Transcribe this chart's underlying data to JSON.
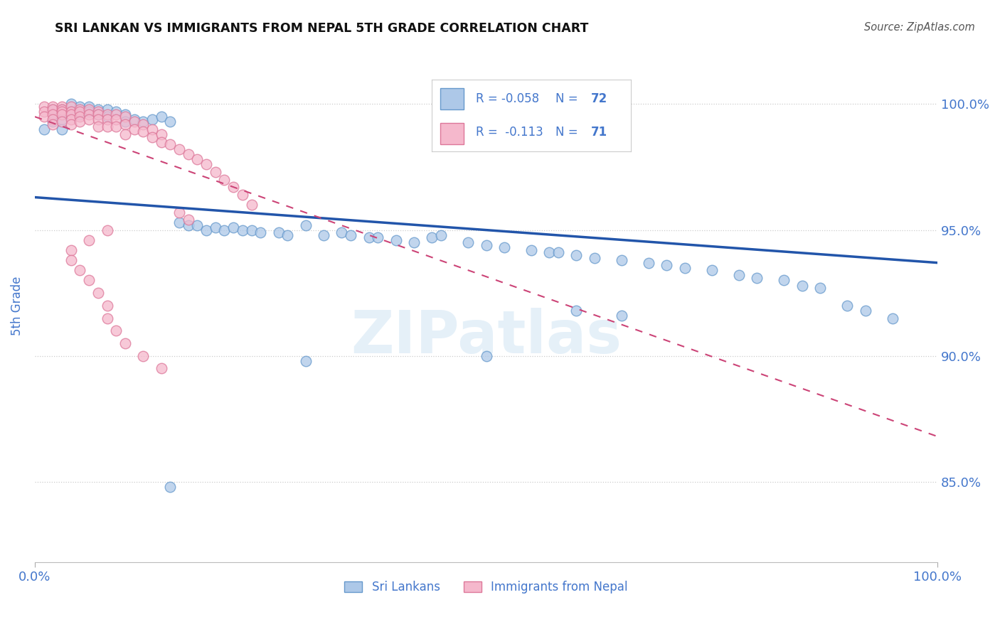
{
  "title": "SRI LANKAN VS IMMIGRANTS FROM NEPAL 5TH GRADE CORRELATION CHART",
  "source": "Source: ZipAtlas.com",
  "ylabel": "5th Grade",
  "legend1_label": "Sri Lankans",
  "legend2_label": "Immigrants from Nepal",
  "R1": -0.058,
  "N1": 72,
  "R2": -0.113,
  "N2": 71,
  "blue_color": "#adc8e8",
  "blue_edge_color": "#6699cc",
  "blue_line_color": "#2255aa",
  "pink_color": "#f5b8cc",
  "pink_edge_color": "#dd7799",
  "pink_line_color": "#cc4477",
  "text_color": "#4477cc",
  "title_color": "#111111",
  "watermark": "ZIPatlas",
  "ylabel_ticks": [
    "100.0%",
    "95.0%",
    "90.0%",
    "85.0%"
  ],
  "ylabel_vals": [
    1.0,
    0.95,
    0.9,
    0.85
  ],
  "xlim": [
    0.0,
    1.0
  ],
  "ylim": [
    0.818,
    1.022
  ],
  "blue_x": [
    0.01,
    0.02,
    0.02,
    0.03,
    0.03,
    0.03,
    0.04,
    0.04,
    0.05,
    0.05,
    0.06,
    0.06,
    0.07,
    0.07,
    0.08,
    0.08,
    0.09,
    0.1,
    0.1,
    0.11,
    0.12,
    0.13,
    0.14,
    0.15,
    0.16,
    0.17,
    0.18,
    0.19,
    0.2,
    0.21,
    0.22,
    0.23,
    0.24,
    0.25,
    0.27,
    0.28,
    0.3,
    0.32,
    0.34,
    0.35,
    0.37,
    0.38,
    0.4,
    0.42,
    0.44,
    0.45,
    0.48,
    0.5,
    0.52,
    0.55,
    0.57,
    0.58,
    0.6,
    0.62,
    0.65,
    0.68,
    0.7,
    0.72,
    0.75,
    0.78,
    0.8,
    0.83,
    0.85,
    0.87,
    0.9,
    0.92,
    0.95,
    0.6,
    0.65,
    0.5,
    0.3,
    0.15
  ],
  "blue_y": [
    0.99,
    0.998,
    0.993,
    0.998,
    0.994,
    0.99,
    1.0,
    0.997,
    0.999,
    0.996,
    0.999,
    0.997,
    0.998,
    0.996,
    0.998,
    0.995,
    0.997,
    0.996,
    0.993,
    0.994,
    0.993,
    0.994,
    0.995,
    0.993,
    0.953,
    0.952,
    0.952,
    0.95,
    0.951,
    0.95,
    0.951,
    0.95,
    0.95,
    0.949,
    0.949,
    0.948,
    0.952,
    0.948,
    0.949,
    0.948,
    0.947,
    0.947,
    0.946,
    0.945,
    0.947,
    0.948,
    0.945,
    0.944,
    0.943,
    0.942,
    0.941,
    0.941,
    0.94,
    0.939,
    0.938,
    0.937,
    0.936,
    0.935,
    0.934,
    0.932,
    0.931,
    0.93,
    0.928,
    0.927,
    0.92,
    0.918,
    0.915,
    0.918,
    0.916,
    0.9,
    0.898,
    0.848
  ],
  "pink_x": [
    0.01,
    0.01,
    0.01,
    0.02,
    0.02,
    0.02,
    0.02,
    0.02,
    0.03,
    0.03,
    0.03,
    0.03,
    0.03,
    0.04,
    0.04,
    0.04,
    0.04,
    0.04,
    0.05,
    0.05,
    0.05,
    0.05,
    0.06,
    0.06,
    0.06,
    0.07,
    0.07,
    0.07,
    0.07,
    0.08,
    0.08,
    0.08,
    0.09,
    0.09,
    0.09,
    0.1,
    0.1,
    0.1,
    0.11,
    0.11,
    0.12,
    0.12,
    0.13,
    0.13,
    0.14,
    0.14,
    0.15,
    0.16,
    0.17,
    0.18,
    0.19,
    0.2,
    0.21,
    0.22,
    0.23,
    0.24,
    0.16,
    0.17,
    0.08,
    0.06,
    0.04,
    0.04,
    0.05,
    0.06,
    0.07,
    0.08,
    0.08,
    0.09,
    0.1,
    0.12,
    0.14
  ],
  "pink_y": [
    0.999,
    0.997,
    0.995,
    0.999,
    0.998,
    0.996,
    0.994,
    0.992,
    0.999,
    0.998,
    0.997,
    0.996,
    0.993,
    0.999,
    0.997,
    0.996,
    0.994,
    0.992,
    0.998,
    0.997,
    0.995,
    0.993,
    0.998,
    0.996,
    0.994,
    0.997,
    0.996,
    0.994,
    0.991,
    0.996,
    0.994,
    0.991,
    0.996,
    0.994,
    0.991,
    0.995,
    0.992,
    0.988,
    0.993,
    0.99,
    0.992,
    0.989,
    0.99,
    0.987,
    0.988,
    0.985,
    0.984,
    0.982,
    0.98,
    0.978,
    0.976,
    0.973,
    0.97,
    0.967,
    0.964,
    0.96,
    0.957,
    0.954,
    0.95,
    0.946,
    0.942,
    0.938,
    0.934,
    0.93,
    0.925,
    0.92,
    0.915,
    0.91,
    0.905,
    0.9,
    0.895
  ]
}
